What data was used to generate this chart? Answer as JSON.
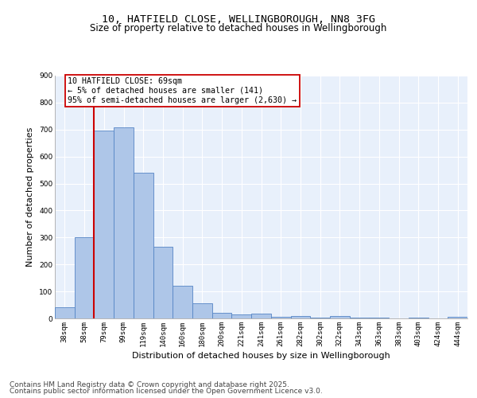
{
  "title_line1": "10, HATFIELD CLOSE, WELLINGBOROUGH, NN8 3FG",
  "title_line2": "Size of property relative to detached houses in Wellingborough",
  "xlabel": "Distribution of detached houses by size in Wellingborough",
  "ylabel": "Number of detached properties",
  "categories": [
    "38sqm",
    "58sqm",
    "79sqm",
    "99sqm",
    "119sqm",
    "140sqm",
    "160sqm",
    "180sqm",
    "200sqm",
    "221sqm",
    "241sqm",
    "261sqm",
    "282sqm",
    "302sqm",
    "322sqm",
    "343sqm",
    "363sqm",
    "383sqm",
    "403sqm",
    "424sqm",
    "444sqm"
  ],
  "values": [
    40,
    300,
    695,
    708,
    540,
    265,
    122,
    57,
    22,
    14,
    17,
    7,
    9,
    2,
    9,
    2,
    4,
    1,
    2,
    1,
    7
  ],
  "bar_color": "#aec6e8",
  "bar_edgecolor": "#5585c5",
  "bar_linewidth": 0.6,
  "vline_x_idx": 1,
  "vline_color": "#cc0000",
  "vline_linewidth": 1.5,
  "annotation_text": "10 HATFIELD CLOSE: 69sqm\n← 5% of detached houses are smaller (141)\n95% of semi-detached houses are larger (2,630) →",
  "annotation_box_edgecolor": "#cc0000",
  "annotation_box_facecolor": "#ffffff",
  "ylim": [
    0,
    900
  ],
  "yticks": [
    0,
    100,
    200,
    300,
    400,
    500,
    600,
    700,
    800,
    900
  ],
  "background_color": "#e8f0fb",
  "grid_color": "#ffffff",
  "footer_line1": "Contains HM Land Registry data © Crown copyright and database right 2025.",
  "footer_line2": "Contains public sector information licensed under the Open Government Licence v3.0.",
  "title_fontsize": 9.5,
  "subtitle_fontsize": 8.5,
  "tick_fontsize": 6.5,
  "label_fontsize": 8,
  "annotation_fontsize": 7.2,
  "footer_fontsize": 6.5
}
